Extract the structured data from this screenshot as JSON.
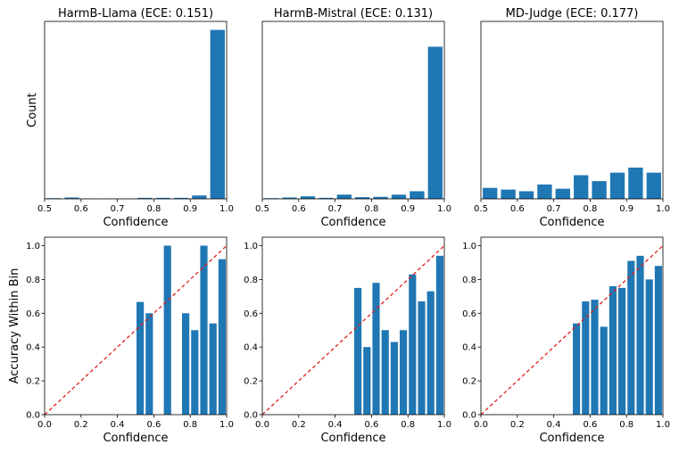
{
  "colors": {
    "bar": "#1f77b4",
    "diagonal": "#e0201b"
  },
  "chart_data": [
    {
      "id": "count-llama",
      "type": "bar",
      "title": "HarmB-Llama (ECE: 0.151)",
      "xlabel": "Confidence",
      "ylabel": "Count",
      "xlim": [
        0.5,
        1.0
      ],
      "ylim": [
        0,
        105
      ],
      "show_yticks": false,
      "xticks": [
        0.5,
        0.6,
        0.7,
        0.8,
        0.9,
        1.0
      ],
      "xtick_labels": [
        "0.5",
        "0.6",
        "0.7",
        "0.8",
        "0.9",
        "1.0"
      ],
      "bin_width": 0.05,
      "bins": [
        0.525,
        0.575,
        0.625,
        0.675,
        0.725,
        0.775,
        0.825,
        0.875,
        0.925,
        0.975
      ],
      "values": [
        0.4,
        0.8,
        0.2,
        0.2,
        0.2,
        0.6,
        0.6,
        0.6,
        2,
        100
      ]
    },
    {
      "id": "count-mistral",
      "type": "bar",
      "title": "HarmB-Mistral (ECE: 0.131)",
      "xlabel": "Confidence",
      "ylabel": "",
      "xlim": [
        0.5,
        1.0
      ],
      "ylim": [
        0,
        105
      ],
      "show_yticks": false,
      "xticks": [
        0.5,
        0.6,
        0.7,
        0.8,
        0.9,
        1.0
      ],
      "xtick_labels": [
        "0.5",
        "0.6",
        "0.7",
        "0.8",
        "0.9",
        "1.0"
      ],
      "bin_width": 0.05,
      "bins": [
        0.525,
        0.575,
        0.625,
        0.675,
        0.725,
        0.775,
        0.825,
        0.875,
        0.925,
        0.975
      ],
      "values": [
        0.4,
        0.8,
        1.5,
        0.6,
        2.5,
        1.0,
        1.2,
        2.5,
        4.5,
        90
      ]
    },
    {
      "id": "count-mdjudge",
      "type": "bar",
      "title": "MD-Judge (ECE: 0.177)",
      "xlabel": "Confidence",
      "ylabel": "",
      "xlim": [
        0.5,
        1.0
      ],
      "ylim": [
        0,
        105
      ],
      "show_yticks": false,
      "xticks": [
        0.5,
        0.6,
        0.7,
        0.8,
        0.9,
        1.0
      ],
      "xtick_labels": [
        "0.5",
        "0.6",
        "0.7",
        "0.8",
        "0.9",
        "1.0"
      ],
      "bin_width": 0.05,
      "bins": [
        0.525,
        0.575,
        0.625,
        0.675,
        0.725,
        0.775,
        0.825,
        0.875,
        0.925,
        0.975
      ],
      "values": [
        6.5,
        5.5,
        4.5,
        8.5,
        6,
        14,
        10.5,
        15.5,
        18.5,
        15.5
      ]
    },
    {
      "id": "acc-llama",
      "type": "bar",
      "title": "",
      "xlabel": "Confidence",
      "ylabel": "Accuracy Within Bin",
      "xlim": [
        0.0,
        1.0
      ],
      "ylim": [
        0.0,
        1.05
      ],
      "show_yticks": true,
      "xticks": [
        0.0,
        0.2,
        0.4,
        0.6,
        0.8,
        1.0
      ],
      "xtick_labels": [
        "0.0",
        "0.2",
        "0.4",
        "0.6",
        "0.8",
        "1.0"
      ],
      "yticks": [
        0.0,
        0.2,
        0.4,
        0.6,
        0.8,
        1.0
      ],
      "ytick_labels": [
        "0.0",
        "0.2",
        "0.4",
        "0.6",
        "0.8",
        "1.0"
      ],
      "diagonal": true,
      "bin_width": 0.05,
      "bins": [
        0.525,
        0.575,
        0.625,
        0.675,
        0.725,
        0.775,
        0.825,
        0.875,
        0.925,
        0.975
      ],
      "values": [
        0.667,
        0.6,
        0,
        1.0,
        0,
        0.6,
        0.5,
        1.0,
        0.54,
        0.92
      ]
    },
    {
      "id": "acc-mistral",
      "type": "bar",
      "title": "",
      "xlabel": "Confidence",
      "ylabel": "",
      "xlim": [
        0.0,
        1.0
      ],
      "ylim": [
        0.0,
        1.05
      ],
      "show_yticks": true,
      "xticks": [
        0.0,
        0.2,
        0.4,
        0.6,
        0.8,
        1.0
      ],
      "xtick_labels": [
        "0.0",
        "0.2",
        "0.4",
        "0.6",
        "0.8",
        "1.0"
      ],
      "yticks": [
        0.0,
        0.2,
        0.4,
        0.6,
        0.8,
        1.0
      ],
      "ytick_labels": [
        "0.0",
        "0.2",
        "0.4",
        "0.6",
        "0.8",
        "1.0"
      ],
      "diagonal": true,
      "bin_width": 0.05,
      "bins": [
        0.525,
        0.575,
        0.625,
        0.675,
        0.725,
        0.775,
        0.825,
        0.875,
        0.925,
        0.975
      ],
      "values": [
        0.75,
        0.4,
        0.78,
        0.5,
        0.43,
        0.5,
        0.83,
        0.67,
        0.73,
        0.94
      ]
    },
    {
      "id": "acc-mdjudge",
      "type": "bar",
      "title": "",
      "xlabel": "Confidence",
      "ylabel": "",
      "xlim": [
        0.0,
        1.0
      ],
      "ylim": [
        0.0,
        1.05
      ],
      "show_yticks": true,
      "xticks": [
        0.0,
        0.2,
        0.4,
        0.6,
        0.8,
        1.0
      ],
      "xtick_labels": [
        "0.0",
        "0.2",
        "0.4",
        "0.6",
        "0.8",
        "1.0"
      ],
      "yticks": [
        0.0,
        0.2,
        0.4,
        0.6,
        0.8,
        1.0
      ],
      "ytick_labels": [
        "0.0",
        "0.2",
        "0.4",
        "0.6",
        "0.8",
        "1.0"
      ],
      "diagonal": true,
      "bin_width": 0.05,
      "bins": [
        0.525,
        0.575,
        0.625,
        0.675,
        0.725,
        0.775,
        0.825,
        0.875,
        0.925,
        0.975
      ],
      "values": [
        0.54,
        0.67,
        0.68,
        0.52,
        0.76,
        0.75,
        0.91,
        0.94,
        0.8,
        0.88
      ]
    }
  ]
}
